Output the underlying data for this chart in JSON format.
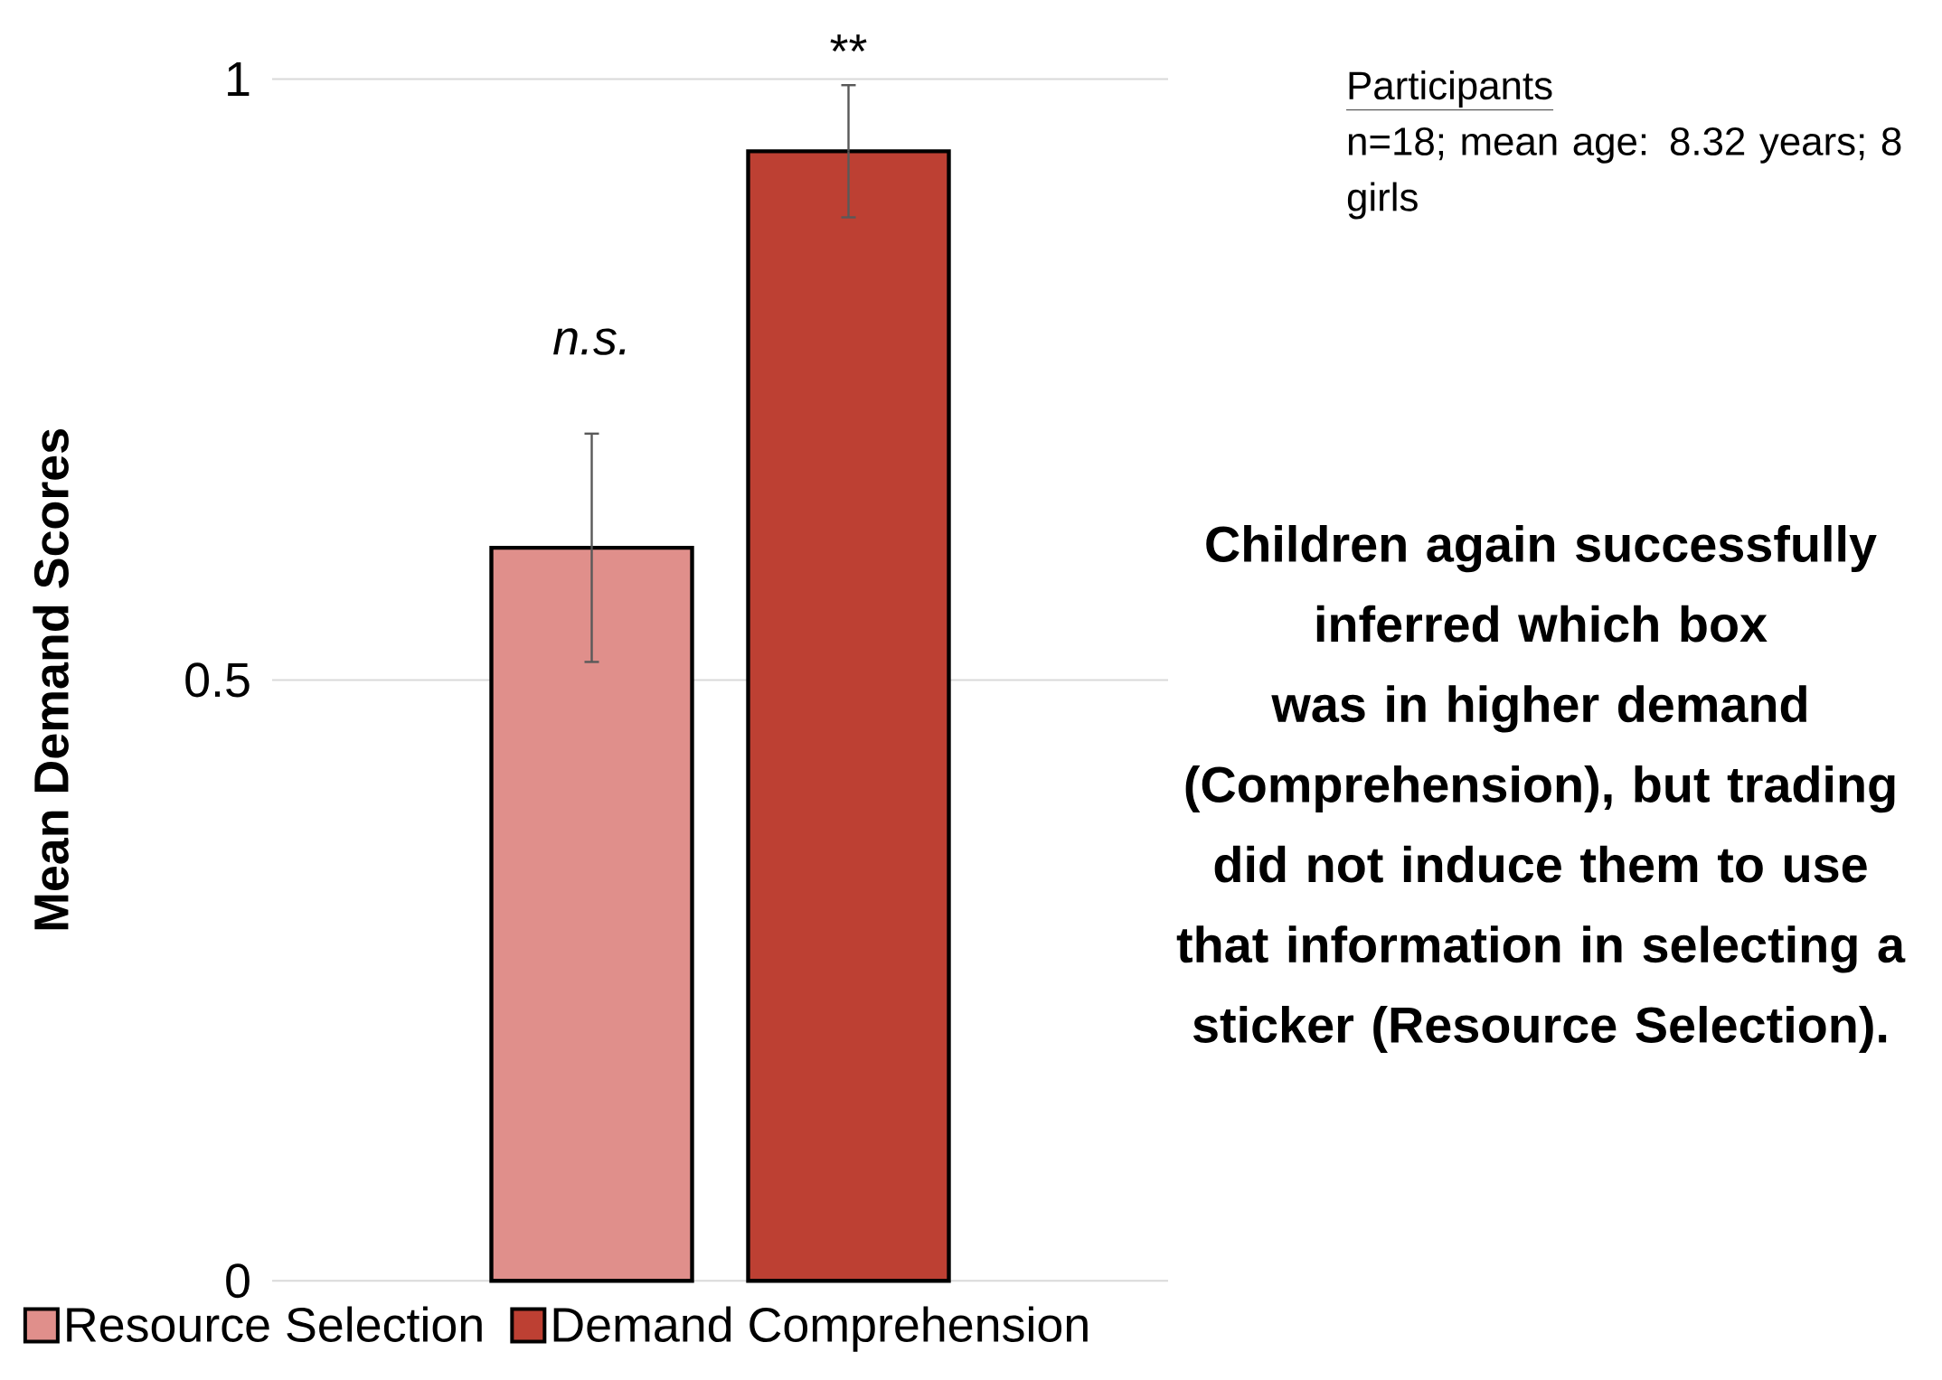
{
  "chart_data": {
    "type": "bar",
    "ylabel": "Mean Demand Scores",
    "categories": [
      null
    ],
    "series": [
      {
        "name": "Resource Selection",
        "color": "#e08f8b",
        "values": [
          0.61
        ],
        "errors": [
          0.095
        ]
      },
      {
        "name": "Demand Comprehension",
        "color": "#bd4033",
        "values": [
          0.94
        ],
        "errors": [
          0.055
        ]
      }
    ],
    "ylim": [
      0,
      1
    ],
    "yticks": [
      0,
      0.5,
      1
    ],
    "grid": "y",
    "legend": "bottom",
    "annotations": [
      "n.s.",
      "**",
      "Participants",
      "n=18; mean age: 8.32 years; 8 girls",
      "Children again successfully inferred which box was in higher demand (Comprehension), but trading did not induce them to use that information in selecting a sticker (Resource Selection)."
    ]
  }
}
